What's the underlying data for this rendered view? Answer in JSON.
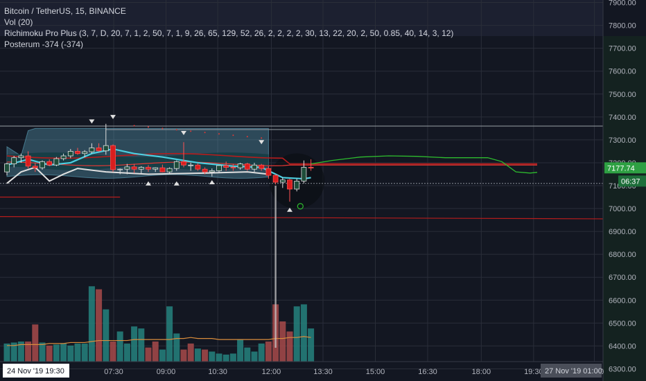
{
  "chart_data": {
    "type": "candlestick",
    "title": "Bitcoin / TetherUS, 15, BINANCE",
    "indicators": [
      {
        "name": "Vol (20)"
      },
      {
        "name": "Richimoku Pro Plus (3, 7, D, 20, 7, 1, 2, 50, 7, 1, 9, 26, 65, 129, 52, 26, 2, 2, 2, 2, 30, 13, 22, 20, 2, 50, 0.85, 40, 14, 3, 12)"
      },
      {
        "name": "Posterum -374 (-374)"
      }
    ],
    "y_axis": {
      "min": 6250,
      "max": 7950,
      "ticks": [
        "7900.00",
        "7800.00",
        "7700.00",
        "7600.00",
        "7500.00",
        "7400.00",
        "7300.00",
        "7200.00",
        "7100.00",
        "7000.00",
        "6900.00",
        "6800.00",
        "6700.00",
        "6600.00",
        "6500.00",
        "6400.00",
        "6300.00"
      ],
      "last_price_label": "7177.74",
      "countdown_label": "06:37",
      "last_price": 7177.74,
      "countdown_price": 7120
    },
    "x_axis": {
      "start_label": "24 Nov '19   19:30",
      "end_label": "27 Nov '19   01:00",
      "ticks": [
        {
          "label": "07:30",
          "pos": 0.176
        },
        {
          "label": "09:00",
          "pos": 0.257
        },
        {
          "label": "10:30",
          "pos": 0.337
        },
        {
          "label": "12:00",
          "pos": 0.42
        },
        {
          "label": "13:30",
          "pos": 0.5
        },
        {
          "label": "15:00",
          "pos": 0.581
        },
        {
          "label": "16:30",
          "pos": 0.662
        },
        {
          "label": "18:00",
          "pos": 0.745
        },
        {
          "label": "19:30",
          "pos": 0.826
        },
        {
          "label": "01:00",
          "pos": 0.92
        }
      ]
    },
    "candles": [
      {
        "o": 7160,
        "h": 7200,
        "l": 7145,
        "c": 7195
      },
      {
        "o": 7195,
        "h": 7230,
        "l": 7180,
        "c": 7222
      },
      {
        "o": 7222,
        "h": 7240,
        "l": 7200,
        "c": 7230
      },
      {
        "o": 7230,
        "h": 7250,
        "l": 7175,
        "c": 7185
      },
      {
        "o": 7185,
        "h": 7200,
        "l": 7160,
        "c": 7178
      },
      {
        "o": 7178,
        "h": 7210,
        "l": 7170,
        "c": 7205
      },
      {
        "o": 7205,
        "h": 7215,
        "l": 7185,
        "c": 7190
      },
      {
        "o": 7190,
        "h": 7225,
        "l": 7185,
        "c": 7218
      },
      {
        "o": 7218,
        "h": 7240,
        "l": 7210,
        "c": 7230
      },
      {
        "o": 7230,
        "h": 7260,
        "l": 7220,
        "c": 7250
      },
      {
        "o": 7250,
        "h": 7265,
        "l": 7235,
        "c": 7240
      },
      {
        "o": 7240,
        "h": 7255,
        "l": 7225,
        "c": 7248
      },
      {
        "o": 7248,
        "h": 7285,
        "l": 7240,
        "c": 7265
      },
      {
        "o": 7265,
        "h": 7285,
        "l": 7248,
        "c": 7252
      },
      {
        "o": 7252,
        "h": 7370,
        "l": 7235,
        "c": 7275
      },
      {
        "o": 7275,
        "h": 7280,
        "l": 7160,
        "c": 7170
      },
      {
        "o": 7170,
        "h": 7175,
        "l": 7150,
        "c": 7172
      },
      {
        "o": 7172,
        "h": 7195,
        "l": 7150,
        "c": 7182
      },
      {
        "o": 7182,
        "h": 7195,
        "l": 7155,
        "c": 7172
      },
      {
        "o": 7172,
        "h": 7185,
        "l": 7150,
        "c": 7180
      },
      {
        "o": 7180,
        "h": 7190,
        "l": 7160,
        "c": 7172
      },
      {
        "o": 7172,
        "h": 7180,
        "l": 7160,
        "c": 7178
      },
      {
        "o": 7178,
        "h": 7192,
        "l": 7158,
        "c": 7160
      },
      {
        "o": 7160,
        "h": 7180,
        "l": 7150,
        "c": 7175
      },
      {
        "o": 7175,
        "h": 7210,
        "l": 7165,
        "c": 7205
      },
      {
        "o": 7205,
        "h": 7290,
        "l": 7180,
        "c": 7190
      },
      {
        "o": 7190,
        "h": 7200,
        "l": 7165,
        "c": 7190
      },
      {
        "o": 7190,
        "h": 7198,
        "l": 7165,
        "c": 7172
      },
      {
        "o": 7172,
        "h": 7180,
        "l": 7150,
        "c": 7160
      },
      {
        "o": 7160,
        "h": 7175,
        "l": 7140,
        "c": 7165
      },
      {
        "o": 7165,
        "h": 7190,
        "l": 7155,
        "c": 7188
      },
      {
        "o": 7188,
        "h": 7205,
        "l": 7165,
        "c": 7180
      },
      {
        "o": 7180,
        "h": 7195,
        "l": 7165,
        "c": 7178
      },
      {
        "o": 7178,
        "h": 7200,
        "l": 7170,
        "c": 7195
      },
      {
        "o": 7195,
        "h": 7200,
        "l": 7165,
        "c": 7172
      },
      {
        "o": 7172,
        "h": 7200,
        "l": 7160,
        "c": 7190
      },
      {
        "o": 7190,
        "h": 7195,
        "l": 7165,
        "c": 7175
      },
      {
        "o": 7175,
        "h": 7185,
        "l": 7130,
        "c": 7145
      },
      {
        "o": 7145,
        "h": 7150,
        "l": 7105,
        "c": 7115
      },
      {
        "o": 7115,
        "h": 7135,
        "l": 7090,
        "c": 7125
      },
      {
        "o": 7125,
        "h": 7130,
        "l": 7030,
        "c": 7085
      },
      {
        "o": 7085,
        "h": 7130,
        "l": 7075,
        "c": 7120
      },
      {
        "o": 7120,
        "h": 7210,
        "l": 7110,
        "c": 7180
      },
      {
        "o": 7180,
        "h": 7215,
        "l": 7165,
        "c": 7177.74
      }
    ],
    "volumes": [
      {
        "v": 0.18,
        "up": true
      },
      {
        "v": 0.19,
        "up": true
      },
      {
        "v": 0.2,
        "up": true
      },
      {
        "v": 0.2,
        "up": false
      },
      {
        "v": 0.37,
        "up": false
      },
      {
        "v": 0.19,
        "up": true
      },
      {
        "v": 0.16,
        "up": false
      },
      {
        "v": 0.17,
        "up": true
      },
      {
        "v": 0.18,
        "up": true
      },
      {
        "v": 0.16,
        "up": true
      },
      {
        "v": 0.18,
        "up": true
      },
      {
        "v": 0.18,
        "up": true
      },
      {
        "v": 0.75,
        "up": true
      },
      {
        "v": 0.72,
        "up": false
      },
      {
        "v": 0.52,
        "up": true
      },
      {
        "v": 0.2,
        "up": false
      },
      {
        "v": 0.3,
        "up": true
      },
      {
        "v": 0.18,
        "up": true
      },
      {
        "v": 0.35,
        "up": true
      },
      {
        "v": 0.33,
        "up": true
      },
      {
        "v": 0.14,
        "up": false
      },
      {
        "v": 0.2,
        "up": false
      },
      {
        "v": 0.12,
        "up": true
      },
      {
        "v": 0.55,
        "up": true
      },
      {
        "v": 0.28,
        "up": true
      },
      {
        "v": 0.12,
        "up": false
      },
      {
        "v": 0.18,
        "up": false
      },
      {
        "v": 0.13,
        "up": true
      },
      {
        "v": 0.12,
        "up": false
      },
      {
        "v": 0.1,
        "up": true
      },
      {
        "v": 0.08,
        "up": true
      },
      {
        "v": 0.07,
        "up": true
      },
      {
        "v": 0.08,
        "up": true
      },
      {
        "v": 0.22,
        "up": true
      },
      {
        "v": 0.14,
        "up": true
      },
      {
        "v": 0.1,
        "up": true
      },
      {
        "v": 0.18,
        "up": true
      },
      {
        "v": 0.2,
        "up": false
      },
      {
        "v": 0.57,
        "up": false
      },
      {
        "v": 0.4,
        "up": false
      },
      {
        "v": 0.3,
        "up": false
      },
      {
        "v": 0.55,
        "up": true
      },
      {
        "v": 0.57,
        "up": true
      },
      {
        "v": 0.33,
        "up": true
      }
    ],
    "volume_ma": [
      0.16,
      0.16,
      0.17,
      0.17,
      0.17,
      0.17,
      0.18,
      0.18,
      0.18,
      0.19,
      0.19,
      0.19,
      0.2,
      0.21,
      0.21,
      0.21,
      0.21,
      0.21,
      0.22,
      0.22,
      0.22,
      0.22,
      0.22,
      0.22,
      0.23,
      0.23,
      0.24,
      0.23,
      0.23,
      0.23,
      0.22,
      0.22,
      0.22,
      0.22,
      0.22,
      0.22,
      0.22,
      0.22,
      0.23,
      0.23,
      0.24,
      0.24,
      0.25,
      0.24
    ],
    "colors": {
      "background": "#131722",
      "grid": "#2a2e39",
      "up": "#d1d4dc",
      "down": "#d91e1e",
      "vol_up": "#26837e",
      "vol_down": "#a84a4a",
      "volume_ma": "#d98c3c",
      "cloud": "#5fa6c0",
      "line_cyan": "#4dd0e1",
      "line_white": "#e0e0e0",
      "line_green": "#2ebd2e",
      "line_red": "#b71c1c",
      "price_label_bg": "#2ea043",
      "axis_text": "#b2b5be"
    }
  }
}
